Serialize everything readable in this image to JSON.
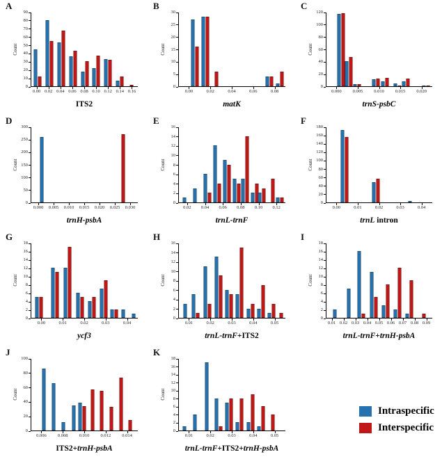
{
  "figure": {
    "ylabel": "Count",
    "background": "#ffffff",
    "legend": {
      "items": [
        {
          "name": "intraspecific",
          "label": "Intraspecific",
          "color": "#2572ae"
        },
        {
          "name": "interspecific",
          "label": "Interspecific",
          "color": "#c21717"
        }
      ]
    }
  },
  "chart_data": [
    {
      "type": "bar",
      "panel": "A",
      "ylabel": "Count",
      "title_parts": [
        {
          "text": "ITS2",
          "italic": false
        }
      ],
      "ylim": [
        0,
        90
      ],
      "ystep": 10,
      "xticks": [
        "0.00",
        "0.02",
        "0.04",
        "0.06",
        "0.08",
        "0.10",
        "0.12",
        "0.14",
        "0.16"
      ],
      "groups": [
        {
          "x": 0.0,
          "pos": 0.056,
          "intraspecific": 45,
          "interspecific": 12
        },
        {
          "x": 0.02,
          "pos": 0.167,
          "intraspecific": 80,
          "interspecific": 55
        },
        {
          "x": 0.04,
          "pos": 0.278,
          "intraspecific": 53,
          "interspecific": 67
        },
        {
          "x": 0.06,
          "pos": 0.389,
          "intraspecific": 36,
          "interspecific": 43
        },
        {
          "x": 0.08,
          "pos": 0.5,
          "intraspecific": 18,
          "interspecific": 30
        },
        {
          "x": 0.1,
          "pos": 0.611,
          "intraspecific": 22,
          "interspecific": 37
        },
        {
          "x": 0.12,
          "pos": 0.722,
          "intraspecific": 33,
          "interspecific": 32
        },
        {
          "x": 0.14,
          "pos": 0.833,
          "intraspecific": 7,
          "interspecific": 12
        },
        {
          "x": 0.16,
          "pos": 0.944,
          "intraspecific": 0,
          "interspecific": 2
        }
      ]
    },
    {
      "type": "bar",
      "panel": "B",
      "ylabel": "Count",
      "title_parts": [
        {
          "text": "matK",
          "italic": true
        }
      ],
      "ylim": [
        0,
        30
      ],
      "ystep": 5,
      "xticks": [
        "0.00",
        "0.02",
        "0.04",
        "0.06",
        "0.08"
      ],
      "groups": [
        {
          "x": 0.005,
          "pos": 0.15,
          "intraspecific": 27,
          "interspecific": 16
        },
        {
          "x": 0.015,
          "pos": 0.25,
          "intraspecific": 28,
          "interspecific": 28
        },
        {
          "x": 0.025,
          "pos": 0.35,
          "intraspecific": 0,
          "interspecific": 6
        },
        {
          "x": 0.075,
          "pos": 0.85,
          "intraspecific": 4,
          "interspecific": 4
        },
        {
          "x": 0.085,
          "pos": 0.95,
          "intraspecific": 1,
          "interspecific": 6
        }
      ]
    },
    {
      "type": "bar",
      "panel": "C",
      "ylabel": "Count",
      "title_parts": [
        {
          "text": "trnS-psbC",
          "italic": true
        }
      ],
      "ylim": [
        0,
        120
      ],
      "ystep": 20,
      "xticks": [
        "0.000",
        "0.005",
        "0.010",
        "0.015",
        "0.020"
      ],
      "groups": [
        {
          "x": 0.001,
          "pos": 0.14,
          "intraspecific": 117,
          "interspecific": 118
        },
        {
          "x": 0.0028,
          "pos": 0.21,
          "intraspecific": 40,
          "interspecific": 47
        },
        {
          "x": 0.0047,
          "pos": 0.29,
          "intraspecific": 3,
          "interspecific": 3
        },
        {
          "x": 0.0092,
          "pos": 0.47,
          "intraspecific": 11,
          "interspecific": 12
        },
        {
          "x": 0.0112,
          "pos": 0.55,
          "intraspecific": 8,
          "interspecific": 13
        },
        {
          "x": 0.0142,
          "pos": 0.67,
          "intraspecific": 4,
          "interspecific": 1
        },
        {
          "x": 0.0162,
          "pos": 0.75,
          "intraspecific": 8,
          "interspecific": 12
        },
        {
          "x": 0.021,
          "pos": 0.94,
          "intraspecific": 1,
          "interspecific": 1
        }
      ]
    },
    {
      "type": "bar",
      "panel": "D",
      "ylabel": "Count",
      "title_parts": [
        {
          "text": "trnH-psbA",
          "italic": true
        }
      ],
      "ylim": [
        0,
        300
      ],
      "ystep": 50,
      "xticks": [
        "0.000",
        "0.005",
        "0.010",
        "0.015",
        "0.020",
        "0.025",
        "0.030"
      ],
      "groups": [
        {
          "x": 0.001,
          "pos": 0.1,
          "intraspecific": 258,
          "interspecific": 0
        },
        {
          "x": 0.027,
          "pos": 0.86,
          "intraspecific": 0,
          "interspecific": 270
        }
      ]
    },
    {
      "type": "bar",
      "panel": "E",
      "ylabel": "Count",
      "title_parts": [
        {
          "text": "trnL-trnF",
          "italic": true
        }
      ],
      "ylim": [
        0,
        16
      ],
      "ystep": 2,
      "xticks": [
        "0.02",
        "0.04",
        "0.06",
        "0.08",
        "0.10",
        "0.12"
      ],
      "groups": [
        {
          "x": 0.016,
          "pos": 0.05,
          "intraspecific": 1,
          "interspecific": 0
        },
        {
          "x": 0.028,
          "pos": 0.15,
          "intraspecific": 3,
          "interspecific": 0
        },
        {
          "x": 0.042,
          "pos": 0.27,
          "intraspecific": 6,
          "interspecific": 2
        },
        {
          "x": 0.053,
          "pos": 0.36,
          "intraspecific": 12,
          "interspecific": 4
        },
        {
          "x": 0.064,
          "pos": 0.45,
          "intraspecific": 9,
          "interspecific": 8
        },
        {
          "x": 0.075,
          "pos": 0.54,
          "intraspecific": 5,
          "interspecific": 4
        },
        {
          "x": 0.084,
          "pos": 0.62,
          "intraspecific": 5,
          "interspecific": 14
        },
        {
          "x": 0.095,
          "pos": 0.71,
          "intraspecific": 2,
          "interspecific": 4
        },
        {
          "x": 0.104,
          "pos": 0.78,
          "intraspecific": 2,
          "interspecific": 3
        },
        {
          "x": 0.116,
          "pos": 0.88,
          "intraspecific": 0,
          "interspecific": 5
        },
        {
          "x": 0.124,
          "pos": 0.95,
          "intraspecific": 1,
          "interspecific": 1
        }
      ]
    },
    {
      "type": "bar",
      "panel": "F",
      "ylabel": "Count",
      "title_parts": [
        {
          "text": "trnL",
          "italic": true
        },
        {
          "text": " intron",
          "italic": false
        }
      ],
      "ylim": [
        0,
        180
      ],
      "ystep": 20,
      "xticks": [
        "0.00",
        "0.01",
        "0.02",
        "0.03",
        "0.04"
      ],
      "groups": [
        {
          "x": 0.003,
          "pos": 0.17,
          "intraspecific": 172,
          "interspecific": 155
        },
        {
          "x": 0.018,
          "pos": 0.47,
          "intraspecific": 48,
          "interspecific": 56
        },
        {
          "x": 0.034,
          "pos": 0.79,
          "intraspecific": 4,
          "interspecific": 0
        }
      ]
    },
    {
      "type": "bar",
      "panel": "G",
      "ylabel": "Count",
      "title_parts": [
        {
          "text": "ycf3",
          "italic": true
        }
      ],
      "ylim": [
        0,
        18
      ],
      "ystep": 2,
      "xticks": [
        "0.00",
        "0.01",
        "0.02",
        "0.03",
        "0.04"
      ],
      "groups": [
        {
          "x": 0.0,
          "pos": 0.07,
          "intraspecific": 5,
          "interspecific": 5
        },
        {
          "x": 0.006,
          "pos": 0.22,
          "intraspecific": 12,
          "interspecific": 11
        },
        {
          "x": 0.012,
          "pos": 0.34,
          "intraspecific": 12,
          "interspecific": 17
        },
        {
          "x": 0.018,
          "pos": 0.46,
          "intraspecific": 6,
          "interspecific": 5
        },
        {
          "x": 0.023,
          "pos": 0.57,
          "intraspecific": 4,
          "interspecific": 5
        },
        {
          "x": 0.029,
          "pos": 0.68,
          "intraspecific": 7,
          "interspecific": 9
        },
        {
          "x": 0.034,
          "pos": 0.78,
          "intraspecific": 2,
          "interspecific": 2
        },
        {
          "x": 0.038,
          "pos": 0.86,
          "intraspecific": 2,
          "interspecific": 0
        },
        {
          "x": 0.043,
          "pos": 0.96,
          "intraspecific": 1,
          "interspecific": 0
        }
      ]
    },
    {
      "type": "bar",
      "panel": "H",
      "ylabel": "Count",
      "title_parts": [
        {
          "text": "trnL-trnF",
          "italic": true
        },
        {
          "text": "+ITS2",
          "italic": false
        }
      ],
      "ylim": [
        0,
        16
      ],
      "ystep": 2,
      "xticks": [
        "0.01",
        "0.02",
        "0.03",
        "0.04",
        "0.05"
      ],
      "groups": [
        {
          "x": 0.009,
          "pos": 0.06,
          "intraspecific": 3,
          "interspecific": 0
        },
        {
          "x": 0.013,
          "pos": 0.16,
          "intraspecific": 5,
          "interspecific": 1
        },
        {
          "x": 0.018,
          "pos": 0.27,
          "intraspecific": 11,
          "interspecific": 3
        },
        {
          "x": 0.023,
          "pos": 0.37,
          "intraspecific": 13,
          "interspecific": 9
        },
        {
          "x": 0.028,
          "pos": 0.47,
          "intraspecific": 6,
          "interspecific": 5
        },
        {
          "x": 0.033,
          "pos": 0.57,
          "intraspecific": 5,
          "interspecific": 15
        },
        {
          "x": 0.038,
          "pos": 0.67,
          "intraspecific": 2,
          "interspecific": 3
        },
        {
          "x": 0.043,
          "pos": 0.77,
          "intraspecific": 2,
          "interspecific": 7
        },
        {
          "x": 0.048,
          "pos": 0.87,
          "intraspecific": 1,
          "interspecific": 3
        },
        {
          "x": 0.052,
          "pos": 0.96,
          "intraspecific": 0,
          "interspecific": 1
        }
      ]
    },
    {
      "type": "bar",
      "panel": "I",
      "ylabel": "Count",
      "title_parts": [
        {
          "text": "trnL-trnF",
          "italic": true
        },
        {
          "text": "+",
          "italic": false
        },
        {
          "text": "trnH-psbA",
          "italic": true
        }
      ],
      "ylim": [
        0,
        18
      ],
      "ystep": 2,
      "xticks": [
        "0.01",
        "0.02",
        "0.03",
        "0.04",
        "0.05",
        "0.06",
        "0.07",
        "0.08",
        "0.09"
      ],
      "groups": [
        {
          "x": 0.012,
          "pos": 0.08,
          "intraspecific": 2,
          "interspecific": 0
        },
        {
          "x": 0.024,
          "pos": 0.21,
          "intraspecific": 7,
          "interspecific": 0
        },
        {
          "x": 0.035,
          "pos": 0.33,
          "intraspecific": 16,
          "interspecific": 1
        },
        {
          "x": 0.045,
          "pos": 0.45,
          "intraspecific": 11,
          "interspecific": 5
        },
        {
          "x": 0.055,
          "pos": 0.56,
          "intraspecific": 3,
          "interspecific": 8
        },
        {
          "x": 0.065,
          "pos": 0.67,
          "intraspecific": 2,
          "interspecific": 12
        },
        {
          "x": 0.075,
          "pos": 0.78,
          "intraspecific": 1,
          "interspecific": 9
        },
        {
          "x": 0.088,
          "pos": 0.92,
          "intraspecific": 0,
          "interspecific": 1
        }
      ]
    },
    {
      "type": "bar",
      "panel": "J",
      "ylabel": "Count",
      "title_parts": [
        {
          "text": "ITS2+",
          "italic": false
        },
        {
          "text": "trnH-psbA",
          "italic": true
        }
      ],
      "ylim": [
        0,
        100
      ],
      "ystep": 20,
      "xticks": [
        "0.006",
        "0.008",
        "0.010",
        "0.012",
        "0.014"
      ],
      "groups": [
        {
          "x": 0.0062,
          "pos": 0.12,
          "intraspecific": 86,
          "interspecific": 0
        },
        {
          "x": 0.0071,
          "pos": 0.21,
          "intraspecific": 65,
          "interspecific": 0
        },
        {
          "x": 0.008,
          "pos": 0.3,
          "intraspecific": 12,
          "interspecific": 0
        },
        {
          "x": 0.009,
          "pos": 0.4,
          "intraspecific": 35,
          "interspecific": 0
        },
        {
          "x": 0.0098,
          "pos": 0.48,
          "intraspecific": 38,
          "interspecific": 34
        },
        {
          "x": 0.0108,
          "pos": 0.575,
          "intraspecific": 0,
          "interspecific": 57
        },
        {
          "x": 0.0116,
          "pos": 0.66,
          "intraspecific": 0,
          "interspecific": 55
        },
        {
          "x": 0.0125,
          "pos": 0.75,
          "intraspecific": 0,
          "interspecific": 33
        },
        {
          "x": 0.0134,
          "pos": 0.84,
          "intraspecific": 0,
          "interspecific": 73
        },
        {
          "x": 0.0143,
          "pos": 0.93,
          "intraspecific": 0,
          "interspecific": 14
        }
      ]
    },
    {
      "type": "bar",
      "panel": "K",
      "ylabel": "Count",
      "title_parts": [
        {
          "text": "trnL-trnF",
          "italic": true
        },
        {
          "text": "+ITS2+",
          "italic": false
        },
        {
          "text": "trnH-psbA",
          "italic": true
        }
      ],
      "ylim": [
        0,
        18
      ],
      "ystep": 2,
      "xticks": [
        "0.01",
        "0.02",
        "0.03",
        "0.04",
        "0.05"
      ],
      "groups": [
        {
          "x": 0.008,
          "pos": 0.05,
          "intraspecific": 1,
          "interspecific": 0
        },
        {
          "x": 0.012,
          "pos": 0.15,
          "intraspecific": 4,
          "interspecific": 0
        },
        {
          "x": 0.017,
          "pos": 0.26,
          "intraspecific": 17,
          "interspecific": 0
        },
        {
          "x": 0.023,
          "pos": 0.37,
          "intraspecific": 8,
          "interspecific": 1
        },
        {
          "x": 0.028,
          "pos": 0.47,
          "intraspecific": 7,
          "interspecific": 8
        },
        {
          "x": 0.033,
          "pos": 0.57,
          "intraspecific": 2,
          "interspecific": 8
        },
        {
          "x": 0.038,
          "pos": 0.67,
          "intraspecific": 2,
          "interspecific": 9
        },
        {
          "x": 0.043,
          "pos": 0.77,
          "intraspecific": 1,
          "interspecific": 6
        },
        {
          "x": 0.048,
          "pos": 0.88,
          "intraspecific": 0,
          "interspecific": 4
        }
      ]
    }
  ]
}
